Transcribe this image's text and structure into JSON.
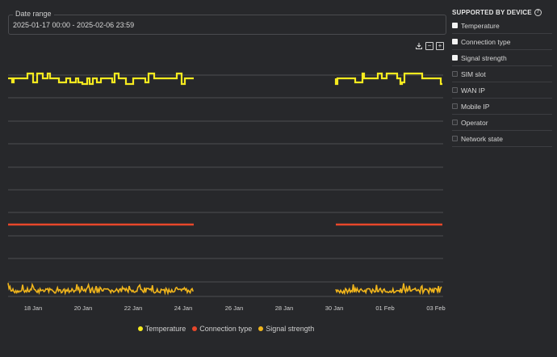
{
  "date_range": {
    "label": "Date range",
    "value": "2025-01-17 00:00 - 2025-02-06 23:59"
  },
  "toolbar": {
    "download_icon": "download-icon",
    "zoom_out_icon": "zoom-out-icon",
    "zoom_in_icon": "zoom-in-icon",
    "zoom_out_glyph": "−",
    "zoom_in_glyph": "+"
  },
  "colors": {
    "temperature": "#f6ea1f",
    "connection_type": "#e8472b",
    "signal_strength": "#f0b51c",
    "grid": "#5a5b5f"
  },
  "chart_data": {
    "type": "line",
    "x_ticks": [
      "18 Jan",
      "20 Jan",
      "22 Jan",
      "24 Jan",
      "26 Jan",
      "28 Jan",
      "30 Jan",
      "01 Feb",
      "03 Feb"
    ],
    "grid": true,
    "legend_position": "bottom",
    "gap": {
      "from": "24 Jan",
      "to": "30 Jan"
    },
    "series": [
      {
        "name": "Temperature"
      },
      {
        "name": "Connection type"
      },
      {
        "name": "Signal strength"
      }
    ]
  },
  "legend": [
    {
      "label": "Temperature"
    },
    {
      "label": "Connection type"
    },
    {
      "label": "Signal strength"
    }
  ],
  "sidebar": {
    "title": "SUPPORTED BY DEVICE",
    "items": [
      {
        "label": "Temperature",
        "checked": true
      },
      {
        "label": "Connection type",
        "checked": true
      },
      {
        "label": "Signal strength",
        "checked": true
      },
      {
        "label": "SIM slot",
        "checked": false
      },
      {
        "label": "WAN IP",
        "checked": false
      },
      {
        "label": "Mobile IP",
        "checked": false
      },
      {
        "label": "Operator",
        "checked": false
      },
      {
        "label": "Network state",
        "checked": false
      }
    ]
  }
}
